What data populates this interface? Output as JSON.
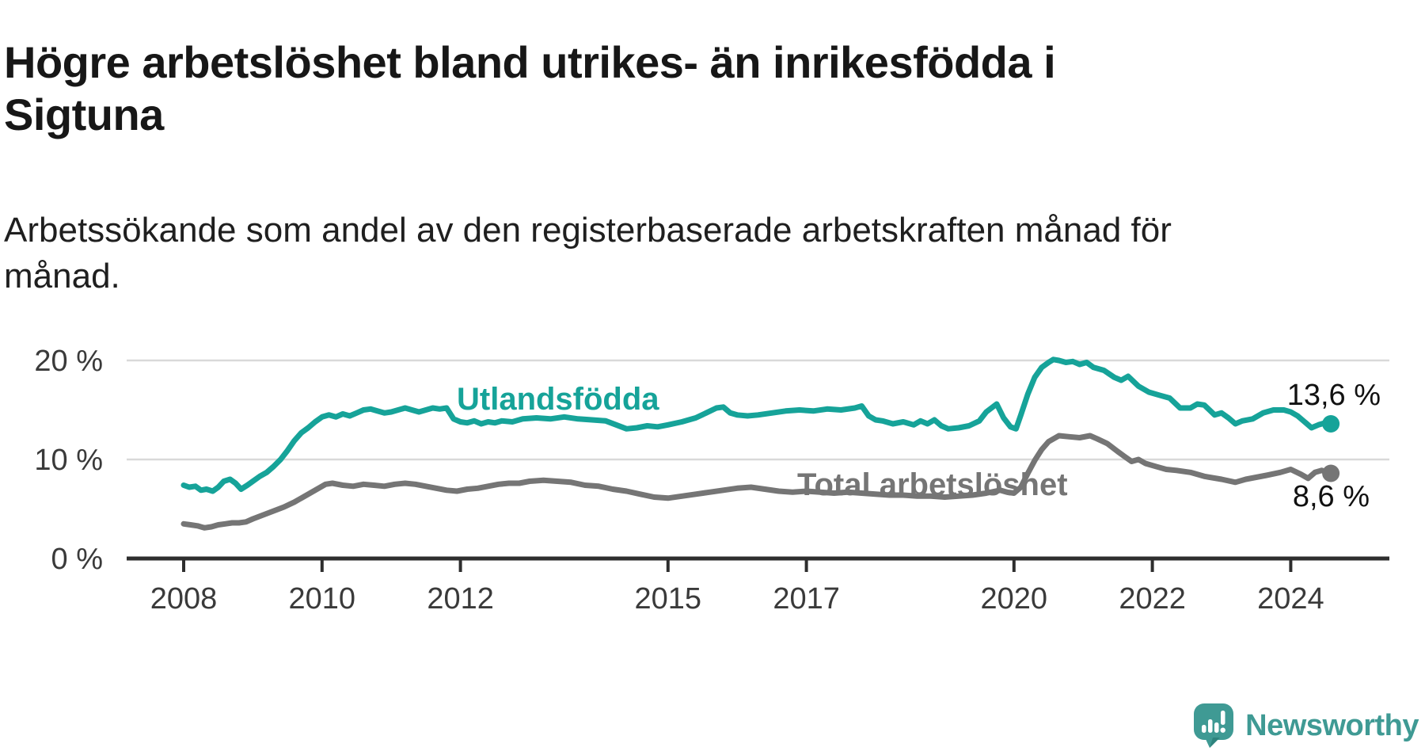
{
  "header": {
    "title": "Högre arbetslöshet bland utrikes- än inrikesfödda i\nSigtuna",
    "subtitle": "Arbetssökande som andel av den registerbaserade arbetskraften månad för\nmånad."
  },
  "footer": {
    "brand": "Newsworthy"
  },
  "colors": {
    "teal_line": "#16a399",
    "gray_line": "#757575",
    "axis": "#2e2e2e",
    "gridline": "#d9d9d9",
    "tick_label": "#3a3a3a",
    "value_label": "#111111",
    "brand_teal": "#3f9a94",
    "brand_teal_dark": "#2e837d"
  },
  "chart_data": {
    "type": "line",
    "title": "Högre arbetslöshet bland utrikes- än inrikesfödda i Sigtuna",
    "subtitle": "Arbetssökande som andel av den registerbaserade arbetskraften månad för månad.",
    "grid": "horizontal-only",
    "legend_position": "inline-labels",
    "x_axis": {
      "range": [
        2007.2,
        2025.4
      ],
      "ticks": [
        {
          "year": 2008,
          "label": "2008"
        },
        {
          "year": 2010,
          "label": "2010"
        },
        {
          "year": 2012,
          "label": "2012"
        },
        {
          "year": 2015,
          "label": "2015"
        },
        {
          "year": 2017,
          "label": "2017"
        },
        {
          "year": 2020,
          "label": "2020"
        },
        {
          "year": 2022,
          "label": "2022"
        },
        {
          "year": 2024,
          "label": "2024"
        }
      ]
    },
    "y_axis": {
      "range": [
        0,
        22
      ],
      "ticks": [
        {
          "value": 0,
          "label": "0 %"
        },
        {
          "value": 10,
          "label": "10 %"
        },
        {
          "value": 20,
          "label": "20 %"
        }
      ]
    },
    "series": [
      {
        "name": "Utlandsfödda",
        "color": "#16a399",
        "end_label": "13,6 %",
        "end_value": 13.6,
        "points": [
          [
            2008.0,
            7.4
          ],
          [
            2008.08,
            7.2
          ],
          [
            2008.17,
            7.3
          ],
          [
            2008.25,
            6.9
          ],
          [
            2008.33,
            7.0
          ],
          [
            2008.42,
            6.8
          ],
          [
            2008.5,
            7.2
          ],
          [
            2008.58,
            7.8
          ],
          [
            2008.67,
            8.0
          ],
          [
            2008.75,
            7.6
          ],
          [
            2008.83,
            7.0
          ],
          [
            2008.92,
            7.4
          ],
          [
            2009.0,
            7.8
          ],
          [
            2009.1,
            8.3
          ],
          [
            2009.2,
            8.7
          ],
          [
            2009.3,
            9.3
          ],
          [
            2009.4,
            10.0
          ],
          [
            2009.5,
            10.9
          ],
          [
            2009.6,
            11.9
          ],
          [
            2009.7,
            12.7
          ],
          [
            2009.8,
            13.2
          ],
          [
            2009.9,
            13.8
          ],
          [
            2010.0,
            14.3
          ],
          [
            2010.1,
            14.5
          ],
          [
            2010.2,
            14.3
          ],
          [
            2010.3,
            14.6
          ],
          [
            2010.4,
            14.4
          ],
          [
            2010.5,
            14.7
          ],
          [
            2010.6,
            15.0
          ],
          [
            2010.7,
            15.1
          ],
          [
            2010.8,
            14.9
          ],
          [
            2010.9,
            14.7
          ],
          [
            2011.0,
            14.8
          ],
          [
            2011.1,
            15.0
          ],
          [
            2011.2,
            15.2
          ],
          [
            2011.3,
            15.0
          ],
          [
            2011.4,
            14.8
          ],
          [
            2011.5,
            15.0
          ],
          [
            2011.6,
            15.2
          ],
          [
            2011.7,
            15.1
          ],
          [
            2011.8,
            15.2
          ],
          [
            2011.9,
            14.1
          ],
          [
            2012.0,
            13.8
          ],
          [
            2012.1,
            13.7
          ],
          [
            2012.2,
            13.9
          ],
          [
            2012.3,
            13.6
          ],
          [
            2012.4,
            13.8
          ],
          [
            2012.5,
            13.7
          ],
          [
            2012.6,
            13.9
          ],
          [
            2012.75,
            13.8
          ],
          [
            2012.9,
            14.1
          ],
          [
            2013.1,
            14.2
          ],
          [
            2013.3,
            14.1
          ],
          [
            2013.5,
            14.3
          ],
          [
            2013.7,
            14.1
          ],
          [
            2013.9,
            14.0
          ],
          [
            2014.1,
            13.9
          ],
          [
            2014.25,
            13.5
          ],
          [
            2014.4,
            13.1
          ],
          [
            2014.55,
            13.2
          ],
          [
            2014.7,
            13.4
          ],
          [
            2014.85,
            13.3
          ],
          [
            2015.0,
            13.5
          ],
          [
            2015.2,
            13.8
          ],
          [
            2015.4,
            14.2
          ],
          [
            2015.55,
            14.7
          ],
          [
            2015.7,
            15.2
          ],
          [
            2015.8,
            15.3
          ],
          [
            2015.9,
            14.7
          ],
          [
            2016.0,
            14.5
          ],
          [
            2016.15,
            14.4
          ],
          [
            2016.3,
            14.5
          ],
          [
            2016.5,
            14.7
          ],
          [
            2016.7,
            14.9
          ],
          [
            2016.9,
            15.0
          ],
          [
            2017.1,
            14.9
          ],
          [
            2017.3,
            15.1
          ],
          [
            2017.5,
            15.0
          ],
          [
            2017.7,
            15.2
          ],
          [
            2017.8,
            15.4
          ],
          [
            2017.9,
            14.4
          ],
          [
            2018.0,
            14.0
          ],
          [
            2018.1,
            13.9
          ],
          [
            2018.25,
            13.6
          ],
          [
            2018.4,
            13.8
          ],
          [
            2018.55,
            13.5
          ],
          [
            2018.65,
            13.9
          ],
          [
            2018.75,
            13.6
          ],
          [
            2018.85,
            14.0
          ],
          [
            2018.95,
            13.4
          ],
          [
            2019.05,
            13.1
          ],
          [
            2019.2,
            13.2
          ],
          [
            2019.35,
            13.4
          ],
          [
            2019.5,
            13.9
          ],
          [
            2019.6,
            14.8
          ],
          [
            2019.75,
            15.6
          ],
          [
            2019.85,
            14.2
          ],
          [
            2019.95,
            13.3
          ],
          [
            2020.03,
            13.1
          ],
          [
            2020.1,
            14.5
          ],
          [
            2020.2,
            16.6
          ],
          [
            2020.3,
            18.3
          ],
          [
            2020.4,
            19.3
          ],
          [
            2020.5,
            19.8
          ],
          [
            2020.57,
            20.1
          ],
          [
            2020.65,
            20.0
          ],
          [
            2020.75,
            19.8
          ],
          [
            2020.85,
            19.9
          ],
          [
            2020.95,
            19.6
          ],
          [
            2021.05,
            19.8
          ],
          [
            2021.15,
            19.3
          ],
          [
            2021.3,
            19.0
          ],
          [
            2021.45,
            18.3
          ],
          [
            2021.55,
            18.0
          ],
          [
            2021.65,
            18.4
          ],
          [
            2021.8,
            17.4
          ],
          [
            2021.95,
            16.8
          ],
          [
            2022.1,
            16.5
          ],
          [
            2022.25,
            16.2
          ],
          [
            2022.4,
            15.2
          ],
          [
            2022.55,
            15.2
          ],
          [
            2022.65,
            15.6
          ],
          [
            2022.75,
            15.5
          ],
          [
            2022.9,
            14.5
          ],
          [
            2023.0,
            14.7
          ],
          [
            2023.1,
            14.2
          ],
          [
            2023.2,
            13.6
          ],
          [
            2023.3,
            13.9
          ],
          [
            2023.45,
            14.1
          ],
          [
            2023.6,
            14.7
          ],
          [
            2023.75,
            15.0
          ],
          [
            2023.9,
            15.0
          ],
          [
            2024.0,
            14.8
          ],
          [
            2024.1,
            14.4
          ],
          [
            2024.2,
            13.8
          ],
          [
            2024.3,
            13.2
          ],
          [
            2024.4,
            13.5
          ],
          [
            2024.5,
            13.7
          ],
          [
            2024.58,
            13.6
          ]
        ]
      },
      {
        "name": "Total arbetslöshet",
        "color": "#757575",
        "end_label": "8,6 %",
        "end_value": 8.6,
        "points": [
          [
            2008.0,
            3.5
          ],
          [
            2008.1,
            3.4
          ],
          [
            2008.2,
            3.3
          ],
          [
            2008.3,
            3.1
          ],
          [
            2008.4,
            3.2
          ],
          [
            2008.5,
            3.4
          ],
          [
            2008.6,
            3.5
          ],
          [
            2008.7,
            3.6
          ],
          [
            2008.8,
            3.6
          ],
          [
            2008.9,
            3.7
          ],
          [
            2009.0,
            4.0
          ],
          [
            2009.15,
            4.4
          ],
          [
            2009.3,
            4.8
          ],
          [
            2009.45,
            5.2
          ],
          [
            2009.6,
            5.7
          ],
          [
            2009.75,
            6.3
          ],
          [
            2009.9,
            6.9
          ],
          [
            2010.05,
            7.5
          ],
          [
            2010.15,
            7.6
          ],
          [
            2010.3,
            7.4
          ],
          [
            2010.45,
            7.3
          ],
          [
            2010.6,
            7.5
          ],
          [
            2010.75,
            7.4
          ],
          [
            2010.9,
            7.3
          ],
          [
            2011.05,
            7.5
          ],
          [
            2011.2,
            7.6
          ],
          [
            2011.35,
            7.5
          ],
          [
            2011.5,
            7.3
          ],
          [
            2011.65,
            7.1
          ],
          [
            2011.8,
            6.9
          ],
          [
            2011.95,
            6.8
          ],
          [
            2012.1,
            7.0
          ],
          [
            2012.25,
            7.1
          ],
          [
            2012.4,
            7.3
          ],
          [
            2012.55,
            7.5
          ],
          [
            2012.7,
            7.6
          ],
          [
            2012.85,
            7.6
          ],
          [
            2013.0,
            7.8
          ],
          [
            2013.2,
            7.9
          ],
          [
            2013.4,
            7.8
          ],
          [
            2013.6,
            7.7
          ],
          [
            2013.8,
            7.4
          ],
          [
            2014.0,
            7.3
          ],
          [
            2014.2,
            7.0
          ],
          [
            2014.4,
            6.8
          ],
          [
            2014.6,
            6.5
          ],
          [
            2014.8,
            6.2
          ],
          [
            2015.0,
            6.1
          ],
          [
            2015.2,
            6.3
          ],
          [
            2015.4,
            6.5
          ],
          [
            2015.6,
            6.7
          ],
          [
            2015.8,
            6.9
          ],
          [
            2016.0,
            7.1
          ],
          [
            2016.2,
            7.2
          ],
          [
            2016.4,
            7.0
          ],
          [
            2016.6,
            6.8
          ],
          [
            2016.8,
            6.7
          ],
          [
            2017.0,
            6.8
          ],
          [
            2017.2,
            6.7
          ],
          [
            2017.4,
            6.6
          ],
          [
            2017.6,
            6.7
          ],
          [
            2017.8,
            6.6
          ],
          [
            2018.0,
            6.5
          ],
          [
            2018.2,
            6.4
          ],
          [
            2018.4,
            6.4
          ],
          [
            2018.6,
            6.3
          ],
          [
            2018.8,
            6.3
          ],
          [
            2019.0,
            6.2
          ],
          [
            2019.2,
            6.3
          ],
          [
            2019.4,
            6.4
          ],
          [
            2019.6,
            6.6
          ],
          [
            2019.8,
            6.9
          ],
          [
            2019.9,
            6.7
          ],
          [
            2020.0,
            6.6
          ],
          [
            2020.1,
            7.2
          ],
          [
            2020.2,
            8.6
          ],
          [
            2020.3,
            9.9
          ],
          [
            2020.4,
            11.0
          ],
          [
            2020.5,
            11.8
          ],
          [
            2020.65,
            12.4
          ],
          [
            2020.8,
            12.3
          ],
          [
            2020.95,
            12.2
          ],
          [
            2021.1,
            12.4
          ],
          [
            2021.2,
            12.1
          ],
          [
            2021.35,
            11.6
          ],
          [
            2021.5,
            10.8
          ],
          [
            2021.6,
            10.3
          ],
          [
            2021.7,
            9.8
          ],
          [
            2021.8,
            10.0
          ],
          [
            2021.9,
            9.6
          ],
          [
            2022.05,
            9.3
          ],
          [
            2022.2,
            9.0
          ],
          [
            2022.35,
            8.9
          ],
          [
            2022.55,
            8.7
          ],
          [
            2022.75,
            8.3
          ],
          [
            2023.0,
            8.0
          ],
          [
            2023.2,
            7.7
          ],
          [
            2023.35,
            8.0
          ],
          [
            2023.5,
            8.2
          ],
          [
            2023.65,
            8.4
          ],
          [
            2023.85,
            8.7
          ],
          [
            2024.0,
            9.0
          ],
          [
            2024.15,
            8.5
          ],
          [
            2024.25,
            8.1
          ],
          [
            2024.35,
            8.7
          ],
          [
            2024.45,
            8.9
          ],
          [
            2024.58,
            8.6
          ]
        ]
      }
    ]
  }
}
